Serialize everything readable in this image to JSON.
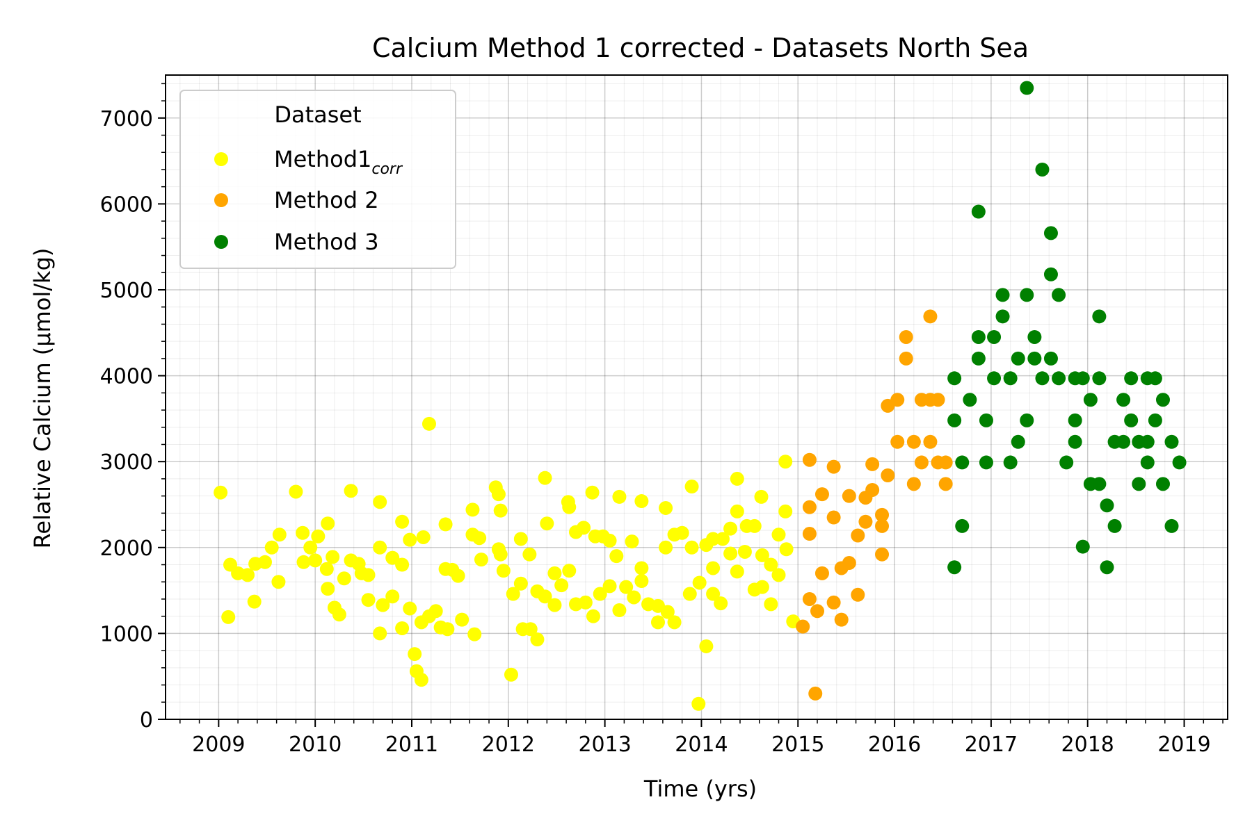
{
  "chart_data": {
    "type": "scatter",
    "title": "Calcium Method 1 corrected - Datasets North Sea",
    "xlabel": "Time (yrs)",
    "ylabel": "Relative Calcium (µmol/kg)",
    "xlim": [
      2008.45,
      2019.45
    ],
    "ylim": [
      0,
      7500
    ],
    "xticks": [
      2009,
      2010,
      2011,
      2012,
      2013,
      2014,
      2015,
      2016,
      2017,
      2018,
      2019
    ],
    "xtick_labels": [
      "2009",
      "2010",
      "2011",
      "2012",
      "2013",
      "2014",
      "2015",
      "2016",
      "2017",
      "2018",
      "2019"
    ],
    "yticks": [
      0,
      1000,
      2000,
      3000,
      4000,
      5000,
      6000,
      7000
    ],
    "ytick_labels": [
      "0",
      "1000",
      "2000",
      "3000",
      "4000",
      "5000",
      "6000",
      "7000"
    ],
    "grid": true,
    "legend": {
      "title": "Dataset",
      "placement": "top-left",
      "entries": [
        {
          "label_main": "Method1",
          "label_sub": "corr",
          "color": "#ffff00"
        },
        {
          "label_main": "Method 2",
          "label_sub": "",
          "color": "#ffa500"
        },
        {
          "label_main": "Method 3",
          "label_sub": "",
          "color": "#008000"
        }
      ]
    },
    "series": [
      {
        "name": "Method1corr",
        "color": "#ffff00",
        "points": [
          [
            2009.02,
            2640
          ],
          [
            2009.1,
            1190
          ],
          [
            2009.12,
            1800
          ],
          [
            2009.2,
            1700
          ],
          [
            2009.3,
            1680
          ],
          [
            2009.37,
            1370
          ],
          [
            2009.38,
            1810
          ],
          [
            2009.48,
            1830
          ],
          [
            2009.55,
            2000
          ],
          [
            2009.62,
            1600
          ],
          [
            2009.63,
            2150
          ],
          [
            2009.8,
            2650
          ],
          [
            2009.87,
            2170
          ],
          [
            2009.88,
            1830
          ],
          [
            2009.95,
            2000
          ],
          [
            2010.0,
            1850
          ],
          [
            2010.03,
            2130
          ],
          [
            2010.12,
            1750
          ],
          [
            2010.13,
            1520
          ],
          [
            2010.13,
            2280
          ],
          [
            2010.18,
            1890
          ],
          [
            2010.2,
            1300
          ],
          [
            2010.25,
            1220
          ],
          [
            2010.3,
            1640
          ],
          [
            2010.37,
            2660
          ],
          [
            2010.37,
            1850
          ],
          [
            2010.45,
            1810
          ],
          [
            2010.48,
            1700
          ],
          [
            2010.55,
            1680
          ],
          [
            2010.55,
            1390
          ],
          [
            2010.67,
            1000
          ],
          [
            2010.67,
            2530
          ],
          [
            2010.67,
            2000
          ],
          [
            2010.7,
            1330
          ],
          [
            2010.8,
            1880
          ],
          [
            2010.8,
            1430
          ],
          [
            2010.9,
            2300
          ],
          [
            2010.9,
            1800
          ],
          [
            2010.9,
            1060
          ],
          [
            2010.98,
            2090
          ],
          [
            2010.98,
            1290
          ],
          [
            2011.03,
            760
          ],
          [
            2011.05,
            560
          ],
          [
            2011.1,
            1130
          ],
          [
            2011.1,
            460
          ],
          [
            2011.12,
            2120
          ],
          [
            2011.18,
            3440
          ],
          [
            2011.18,
            1200
          ],
          [
            2011.25,
            1260
          ],
          [
            2011.3,
            1070
          ],
          [
            2011.35,
            2270
          ],
          [
            2011.35,
            1750
          ],
          [
            2011.37,
            1050
          ],
          [
            2011.42,
            1740
          ],
          [
            2011.48,
            1670
          ],
          [
            2011.52,
            1160
          ],
          [
            2011.63,
            2440
          ],
          [
            2011.63,
            2150
          ],
          [
            2011.65,
            990
          ],
          [
            2011.7,
            2110
          ],
          [
            2011.72,
            1860
          ],
          [
            2011.87,
            2700
          ],
          [
            2011.9,
            1980
          ],
          [
            2011.9,
            2620
          ],
          [
            2011.92,
            2430
          ],
          [
            2011.92,
            1920
          ],
          [
            2011.95,
            1730
          ],
          [
            2012.03,
            520
          ],
          [
            2012.05,
            1460
          ],
          [
            2012.13,
            2100
          ],
          [
            2012.13,
            1580
          ],
          [
            2012.15,
            1050
          ],
          [
            2012.22,
            1920
          ],
          [
            2012.23,
            1050
          ],
          [
            2012.3,
            930
          ],
          [
            2012.3,
            1490
          ],
          [
            2012.38,
            1430
          ],
          [
            2012.38,
            2810
          ],
          [
            2012.4,
            2280
          ],
          [
            2012.48,
            1700
          ],
          [
            2012.48,
            1330
          ],
          [
            2012.55,
            1560
          ],
          [
            2012.62,
            2530
          ],
          [
            2012.63,
            1730
          ],
          [
            2012.63,
            2470
          ],
          [
            2012.7,
            2180
          ],
          [
            2012.7,
            1340
          ],
          [
            2012.78,
            2230
          ],
          [
            2012.8,
            1360
          ],
          [
            2012.87,
            2640
          ],
          [
            2012.88,
            1200
          ],
          [
            2012.9,
            2130
          ],
          [
            2012.95,
            1460
          ],
          [
            2012.98,
            2130
          ],
          [
            2013.05,
            1550
          ],
          [
            2013.05,
            2080
          ],
          [
            2013.12,
            1900
          ],
          [
            2013.15,
            1270
          ],
          [
            2013.15,
            2590
          ],
          [
            2013.22,
            1540
          ],
          [
            2013.28,
            2070
          ],
          [
            2013.3,
            1420
          ],
          [
            2013.38,
            2540
          ],
          [
            2013.38,
            1760
          ],
          [
            2013.38,
            1610
          ],
          [
            2013.45,
            1340
          ],
          [
            2013.55,
            1130
          ],
          [
            2013.55,
            1320
          ],
          [
            2013.63,
            2460
          ],
          [
            2013.63,
            2000
          ],
          [
            2013.65,
            1250
          ],
          [
            2013.72,
            2150
          ],
          [
            2013.72,
            1130
          ],
          [
            2013.8,
            2170
          ],
          [
            2013.88,
            1460
          ],
          [
            2013.9,
            2710
          ],
          [
            2013.9,
            2000
          ],
          [
            2013.97,
            180
          ],
          [
            2013.98,
            1590
          ],
          [
            2014.05,
            2030
          ],
          [
            2014.05,
            850
          ],
          [
            2014.12,
            1760
          ],
          [
            2014.12,
            1460
          ],
          [
            2014.12,
            2100
          ],
          [
            2014.2,
            1350
          ],
          [
            2014.22,
            2100
          ],
          [
            2014.3,
            2220
          ],
          [
            2014.3,
            1930
          ],
          [
            2014.37,
            2800
          ],
          [
            2014.37,
            2420
          ],
          [
            2014.37,
            1720
          ],
          [
            2014.45,
            1950
          ],
          [
            2014.47,
            2250
          ],
          [
            2014.55,
            2250
          ],
          [
            2014.55,
            1510
          ],
          [
            2014.62,
            2590
          ],
          [
            2014.63,
            1910
          ],
          [
            2014.63,
            1540
          ],
          [
            2014.72,
            1340
          ],
          [
            2014.72,
            1800
          ],
          [
            2014.8,
            2150
          ],
          [
            2014.8,
            1680
          ],
          [
            2014.87,
            3000
          ],
          [
            2014.87,
            2420
          ],
          [
            2014.88,
            1980
          ],
          [
            2014.95,
            1140
          ]
        ]
      },
      {
        "name": "Method 2",
        "color": "#ffa500",
        "points": [
          [
            2015.05,
            1080
          ],
          [
            2015.12,
            3020
          ],
          [
            2015.12,
            2470
          ],
          [
            2015.12,
            2160
          ],
          [
            2015.12,
            1400
          ],
          [
            2015.18,
            300
          ],
          [
            2015.2,
            1260
          ],
          [
            2015.25,
            2620
          ],
          [
            2015.25,
            1700
          ],
          [
            2015.37,
            2940
          ],
          [
            2015.37,
            2350
          ],
          [
            2015.37,
            1360
          ],
          [
            2015.45,
            1760
          ],
          [
            2015.45,
            1160
          ],
          [
            2015.53,
            2600
          ],
          [
            2015.53,
            1820
          ],
          [
            2015.62,
            2140
          ],
          [
            2015.62,
            1450
          ],
          [
            2015.7,
            2580
          ],
          [
            2015.7,
            2300
          ],
          [
            2015.77,
            2970
          ],
          [
            2015.77,
            2670
          ],
          [
            2015.87,
            2250
          ],
          [
            2015.87,
            2380
          ],
          [
            2015.87,
            1920
          ],
          [
            2015.93,
            3650
          ],
          [
            2015.93,
            2840
          ],
          [
            2016.03,
            3720
          ],
          [
            2016.03,
            3230
          ],
          [
            2016.12,
            4450
          ],
          [
            2016.12,
            4200
          ],
          [
            2016.2,
            3230
          ],
          [
            2016.2,
            2740
          ],
          [
            2016.28,
            3720
          ],
          [
            2016.28,
            2990
          ],
          [
            2016.37,
            3720
          ],
          [
            2016.37,
            3230
          ],
          [
            2016.37,
            4690
          ],
          [
            2016.45,
            3720
          ],
          [
            2016.45,
            2990
          ],
          [
            2016.53,
            2740
          ],
          [
            2016.53,
            2990
          ]
        ]
      },
      {
        "name": "Method 3",
        "color": "#008000",
        "points": [
          [
            2016.62,
            3970
          ],
          [
            2016.62,
            3480
          ],
          [
            2016.62,
            1770
          ],
          [
            2016.7,
            2250
          ],
          [
            2016.7,
            2990
          ],
          [
            2016.78,
            3720
          ],
          [
            2016.87,
            5910
          ],
          [
            2016.87,
            4450
          ],
          [
            2016.87,
            4200
          ],
          [
            2016.95,
            2990
          ],
          [
            2016.95,
            3480
          ],
          [
            2017.03,
            4450
          ],
          [
            2017.03,
            3970
          ],
          [
            2017.12,
            4940
          ],
          [
            2017.12,
            4690
          ],
          [
            2017.2,
            3970
          ],
          [
            2017.2,
            2990
          ],
          [
            2017.28,
            3230
          ],
          [
            2017.28,
            4200
          ],
          [
            2017.37,
            7350
          ],
          [
            2017.37,
            4940
          ],
          [
            2017.37,
            3480
          ],
          [
            2017.45,
            4450
          ],
          [
            2017.45,
            4200
          ],
          [
            2017.53,
            6400
          ],
          [
            2017.53,
            3970
          ],
          [
            2017.62,
            5660
          ],
          [
            2017.62,
            5180
          ],
          [
            2017.62,
            4200
          ],
          [
            2017.7,
            4940
          ],
          [
            2017.7,
            3970
          ],
          [
            2017.78,
            2990
          ],
          [
            2017.87,
            3970
          ],
          [
            2017.87,
            3480
          ],
          [
            2017.87,
            3230
          ],
          [
            2017.95,
            3970
          ],
          [
            2017.95,
            2010
          ],
          [
            2018.03,
            3720
          ],
          [
            2018.03,
            2740
          ],
          [
            2018.12,
            4690
          ],
          [
            2018.12,
            3970
          ],
          [
            2018.12,
            2740
          ],
          [
            2018.2,
            2490
          ],
          [
            2018.2,
            1770
          ],
          [
            2018.28,
            3230
          ],
          [
            2018.28,
            2250
          ],
          [
            2018.37,
            3720
          ],
          [
            2018.37,
            3230
          ],
          [
            2018.45,
            3970
          ],
          [
            2018.45,
            3480
          ],
          [
            2018.53,
            3230
          ],
          [
            2018.53,
            2740
          ],
          [
            2018.62,
            3970
          ],
          [
            2018.62,
            3230
          ],
          [
            2018.62,
            2990
          ],
          [
            2018.7,
            3970
          ],
          [
            2018.7,
            3480
          ],
          [
            2018.78,
            3720
          ],
          [
            2018.78,
            2740
          ],
          [
            2018.87,
            3230
          ],
          [
            2018.87,
            2250
          ],
          [
            2018.95,
            2990
          ]
        ]
      }
    ]
  }
}
